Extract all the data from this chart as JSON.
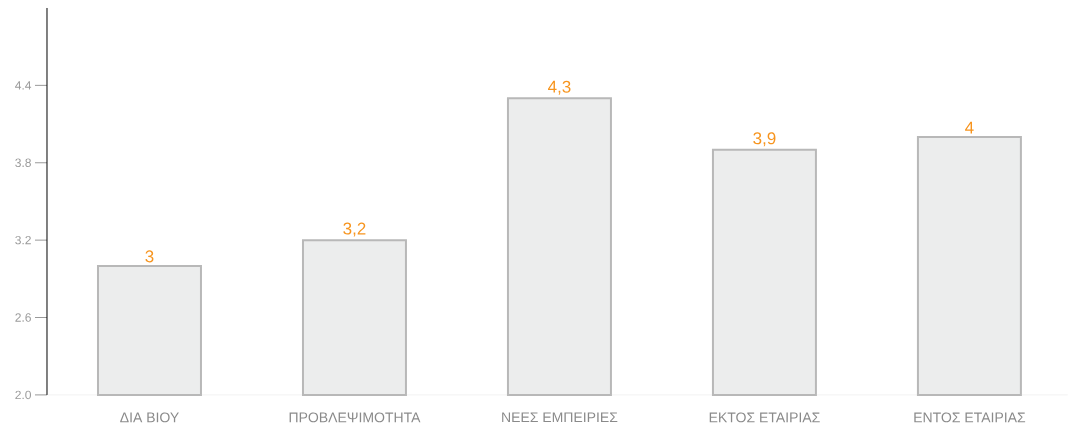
{
  "chart_data": {
    "type": "bar",
    "categories": [
      "ΔΙΑ ΒΙΟΥ",
      "ΠΡΟΒΛΕΨΙΜΟΤΗΤΑ",
      "ΝΕΕΣ ΕΜΠΕΙΡΙΕΣ",
      "ΕΚΤΟΣ ΕΤΑΙΡΙΑΣ",
      "ΕΝΤΟΣ ΕΤΑΙΡΙΑΣ"
    ],
    "values": [
      3,
      3.2,
      4.3,
      3.9,
      4
    ],
    "value_labels": [
      "3",
      "3,2",
      "4,3",
      "3,9",
      "4"
    ],
    "color": "#eceded",
    "ylim": [
      2,
      5
    ],
    "yticks": [
      {
        "value": 2.0,
        "label": "2.0"
      },
      {
        "value": 2.6,
        "label": "2.6"
      },
      {
        "value": 3.2,
        "label": "3.2"
      },
      {
        "value": 3.8,
        "label": "3.8"
      },
      {
        "value": 4.4,
        "label": "4.4"
      }
    ]
  }
}
